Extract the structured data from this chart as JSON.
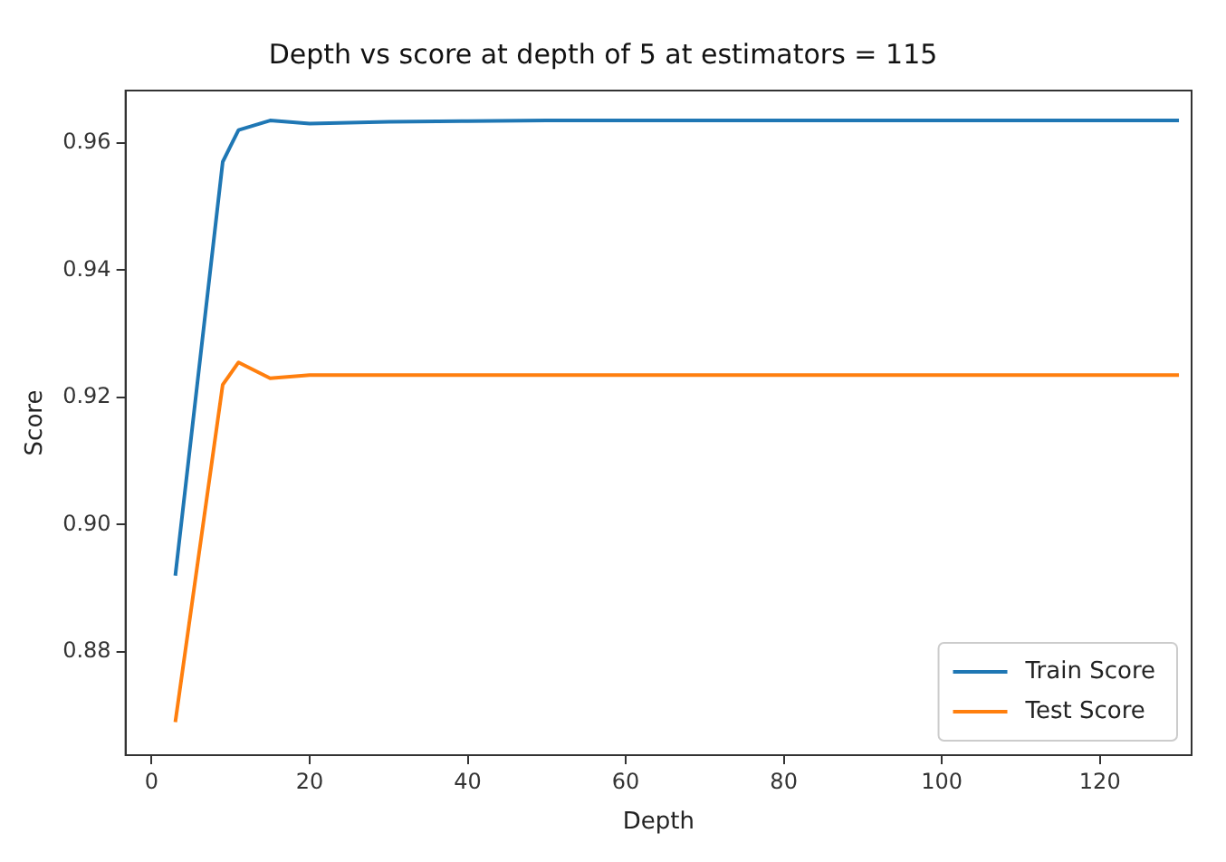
{
  "chart_data": {
    "type": "line",
    "title": "Depth vs score at depth of 5 at estimators = 115",
    "xlabel": "Depth",
    "ylabel": "Score",
    "x": [
      3,
      9,
      11,
      15,
      20,
      30,
      40,
      50,
      60,
      70,
      80,
      90,
      100,
      110,
      120,
      130
    ],
    "series": [
      {
        "name": "Train Score",
        "color": "#1f77b4",
        "values": [
          0.892,
          0.957,
          0.962,
          0.9635,
          0.963,
          0.9633,
          0.9634,
          0.9635,
          0.9635,
          0.9635,
          0.9635,
          0.9635,
          0.9635,
          0.9635,
          0.9635,
          0.9635
        ]
      },
      {
        "name": "Test Score",
        "color": "#ff7f0e",
        "values": [
          0.869,
          0.922,
          0.9255,
          0.923,
          0.9235,
          0.9235,
          0.9235,
          0.9235,
          0.9235,
          0.9235,
          0.9235,
          0.9235,
          0.9235,
          0.9235,
          0.9235,
          0.9235
        ]
      }
    ],
    "xlim": [
      -3.3,
      131.6
    ],
    "ylim": [
      0.8638,
      0.9682
    ],
    "xticks": [
      0,
      20,
      40,
      60,
      80,
      100,
      120
    ],
    "yticks": [
      {
        "value": 0.88,
        "label": "0.88"
      },
      {
        "value": 0.9,
        "label": "0.90"
      },
      {
        "value": 0.92,
        "label": "0.92"
      },
      {
        "value": 0.94,
        "label": "0.94"
      },
      {
        "value": 0.96,
        "label": "0.96"
      }
    ],
    "grid": false,
    "legend": "bottom right",
    "marker": "none",
    "line_style": "solid"
  }
}
